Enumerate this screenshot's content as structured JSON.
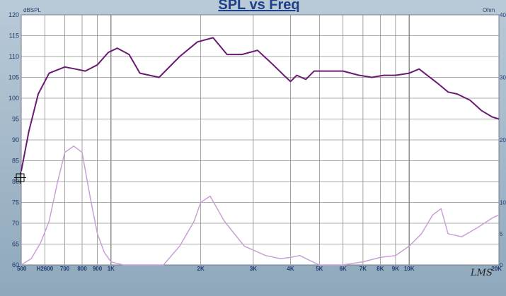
{
  "chart_data": {
    "type": "line",
    "title": "SPL vs Freq",
    "y_unit": "dBSPL",
    "y2_unit": "Ohm",
    "logo": "LMS",
    "xscale": "log",
    "xlim": [
      500,
      20000
    ],
    "ylim": [
      60,
      120
    ],
    "y2lim": [
      0,
      40
    ],
    "grid": true,
    "y_ticks": [
      60,
      65,
      70,
      75,
      80,
      85,
      90,
      95,
      100,
      105,
      110,
      115,
      120
    ],
    "y2_ticks": [
      {
        "value": 0,
        "label": "0"
      },
      {
        "value": 5,
        "label": "5"
      },
      {
        "value": 10,
        "label": "10"
      },
      {
        "value": 20,
        "label": "20"
      },
      {
        "value": 30,
        "label": "30"
      },
      {
        "value": 40,
        "label": "40"
      }
    ],
    "x_ticks": [
      {
        "value": 500,
        "label": "500"
      },
      {
        "value": 600,
        "label": "H2600"
      },
      {
        "value": 700,
        "label": "700"
      },
      {
        "value": 800,
        "label": "800"
      },
      {
        "value": 900,
        "label": "900"
      },
      {
        "value": 1000,
        "label": "1K"
      },
      {
        "value": 2000,
        "label": "2K"
      },
      {
        "value": 3000,
        "label": "3K"
      },
      {
        "value": 4000,
        "label": "4K"
      },
      {
        "value": 5000,
        "label": "5K"
      },
      {
        "value": 6000,
        "label": "6K"
      },
      {
        "value": 7000,
        "label": "7K"
      },
      {
        "value": 8000,
        "label": "8K"
      },
      {
        "value": 9000,
        "label": "9K"
      },
      {
        "value": 10000,
        "label": "10K"
      },
      {
        "value": 20000,
        "label": "20K"
      }
    ],
    "series": [
      {
        "name": "",
        "axis": "left",
        "color": "#6a1a73",
        "x": [
          500,
          530,
          570,
          620,
          700,
          760,
          820,
          900,
          980,
          1050,
          1150,
          1250,
          1450,
          1700,
          1950,
          2200,
          2450,
          2750,
          3100,
          3500,
          3800,
          4000,
          4200,
          4500,
          4800,
          5200,
          6000,
          6800,
          7500,
          8200,
          9000,
          10000,
          10800,
          11500,
          12500,
          13500,
          14500,
          16000,
          17500,
          19000,
          20000
        ],
        "y": [
          82.5,
          92,
          101,
          106,
          107.5,
          107,
          106.5,
          108,
          111,
          112,
          110.5,
          106,
          105,
          110,
          113.5,
          114.5,
          110.5,
          110.5,
          111.5,
          108,
          105.5,
          104,
          105.5,
          104.5,
          106.5,
          106.5,
          106.5,
          105.5,
          105,
          105.5,
          105.5,
          106,
          107,
          105.5,
          103.5,
          101.5,
          101,
          99.5,
          97,
          95.5,
          95
        ]
      },
      {
        "name": "",
        "axis": "right",
        "color": "#c9a0d6",
        "x": [
          500,
          540,
          580,
          620,
          660,
          700,
          750,
          800,
          850,
          900,
          950,
          1000,
          1100,
          1300,
          1500,
          1700,
          1900,
          2000,
          2150,
          2400,
          2800,
          3300,
          3700,
          4000,
          4300,
          4600,
          5000,
          6000,
          7000,
          8000,
          9000,
          10000,
          11000,
          12000,
          12800,
          13500,
          15000,
          17000,
          19000,
          20000
        ],
        "y": [
          0,
          1,
          3.5,
          7,
          13,
          18,
          19,
          18,
          11,
          5,
          2,
          0.5,
          0,
          0,
          0,
          3,
          7,
          10,
          11,
          7,
          3,
          1.5,
          1,
          1.2,
          1.5,
          0.8,
          0,
          0,
          0.5,
          1.2,
          1.5,
          3,
          5,
          8,
          9,
          5,
          4.5,
          6,
          7.5,
          8
        ]
      }
    ]
  }
}
